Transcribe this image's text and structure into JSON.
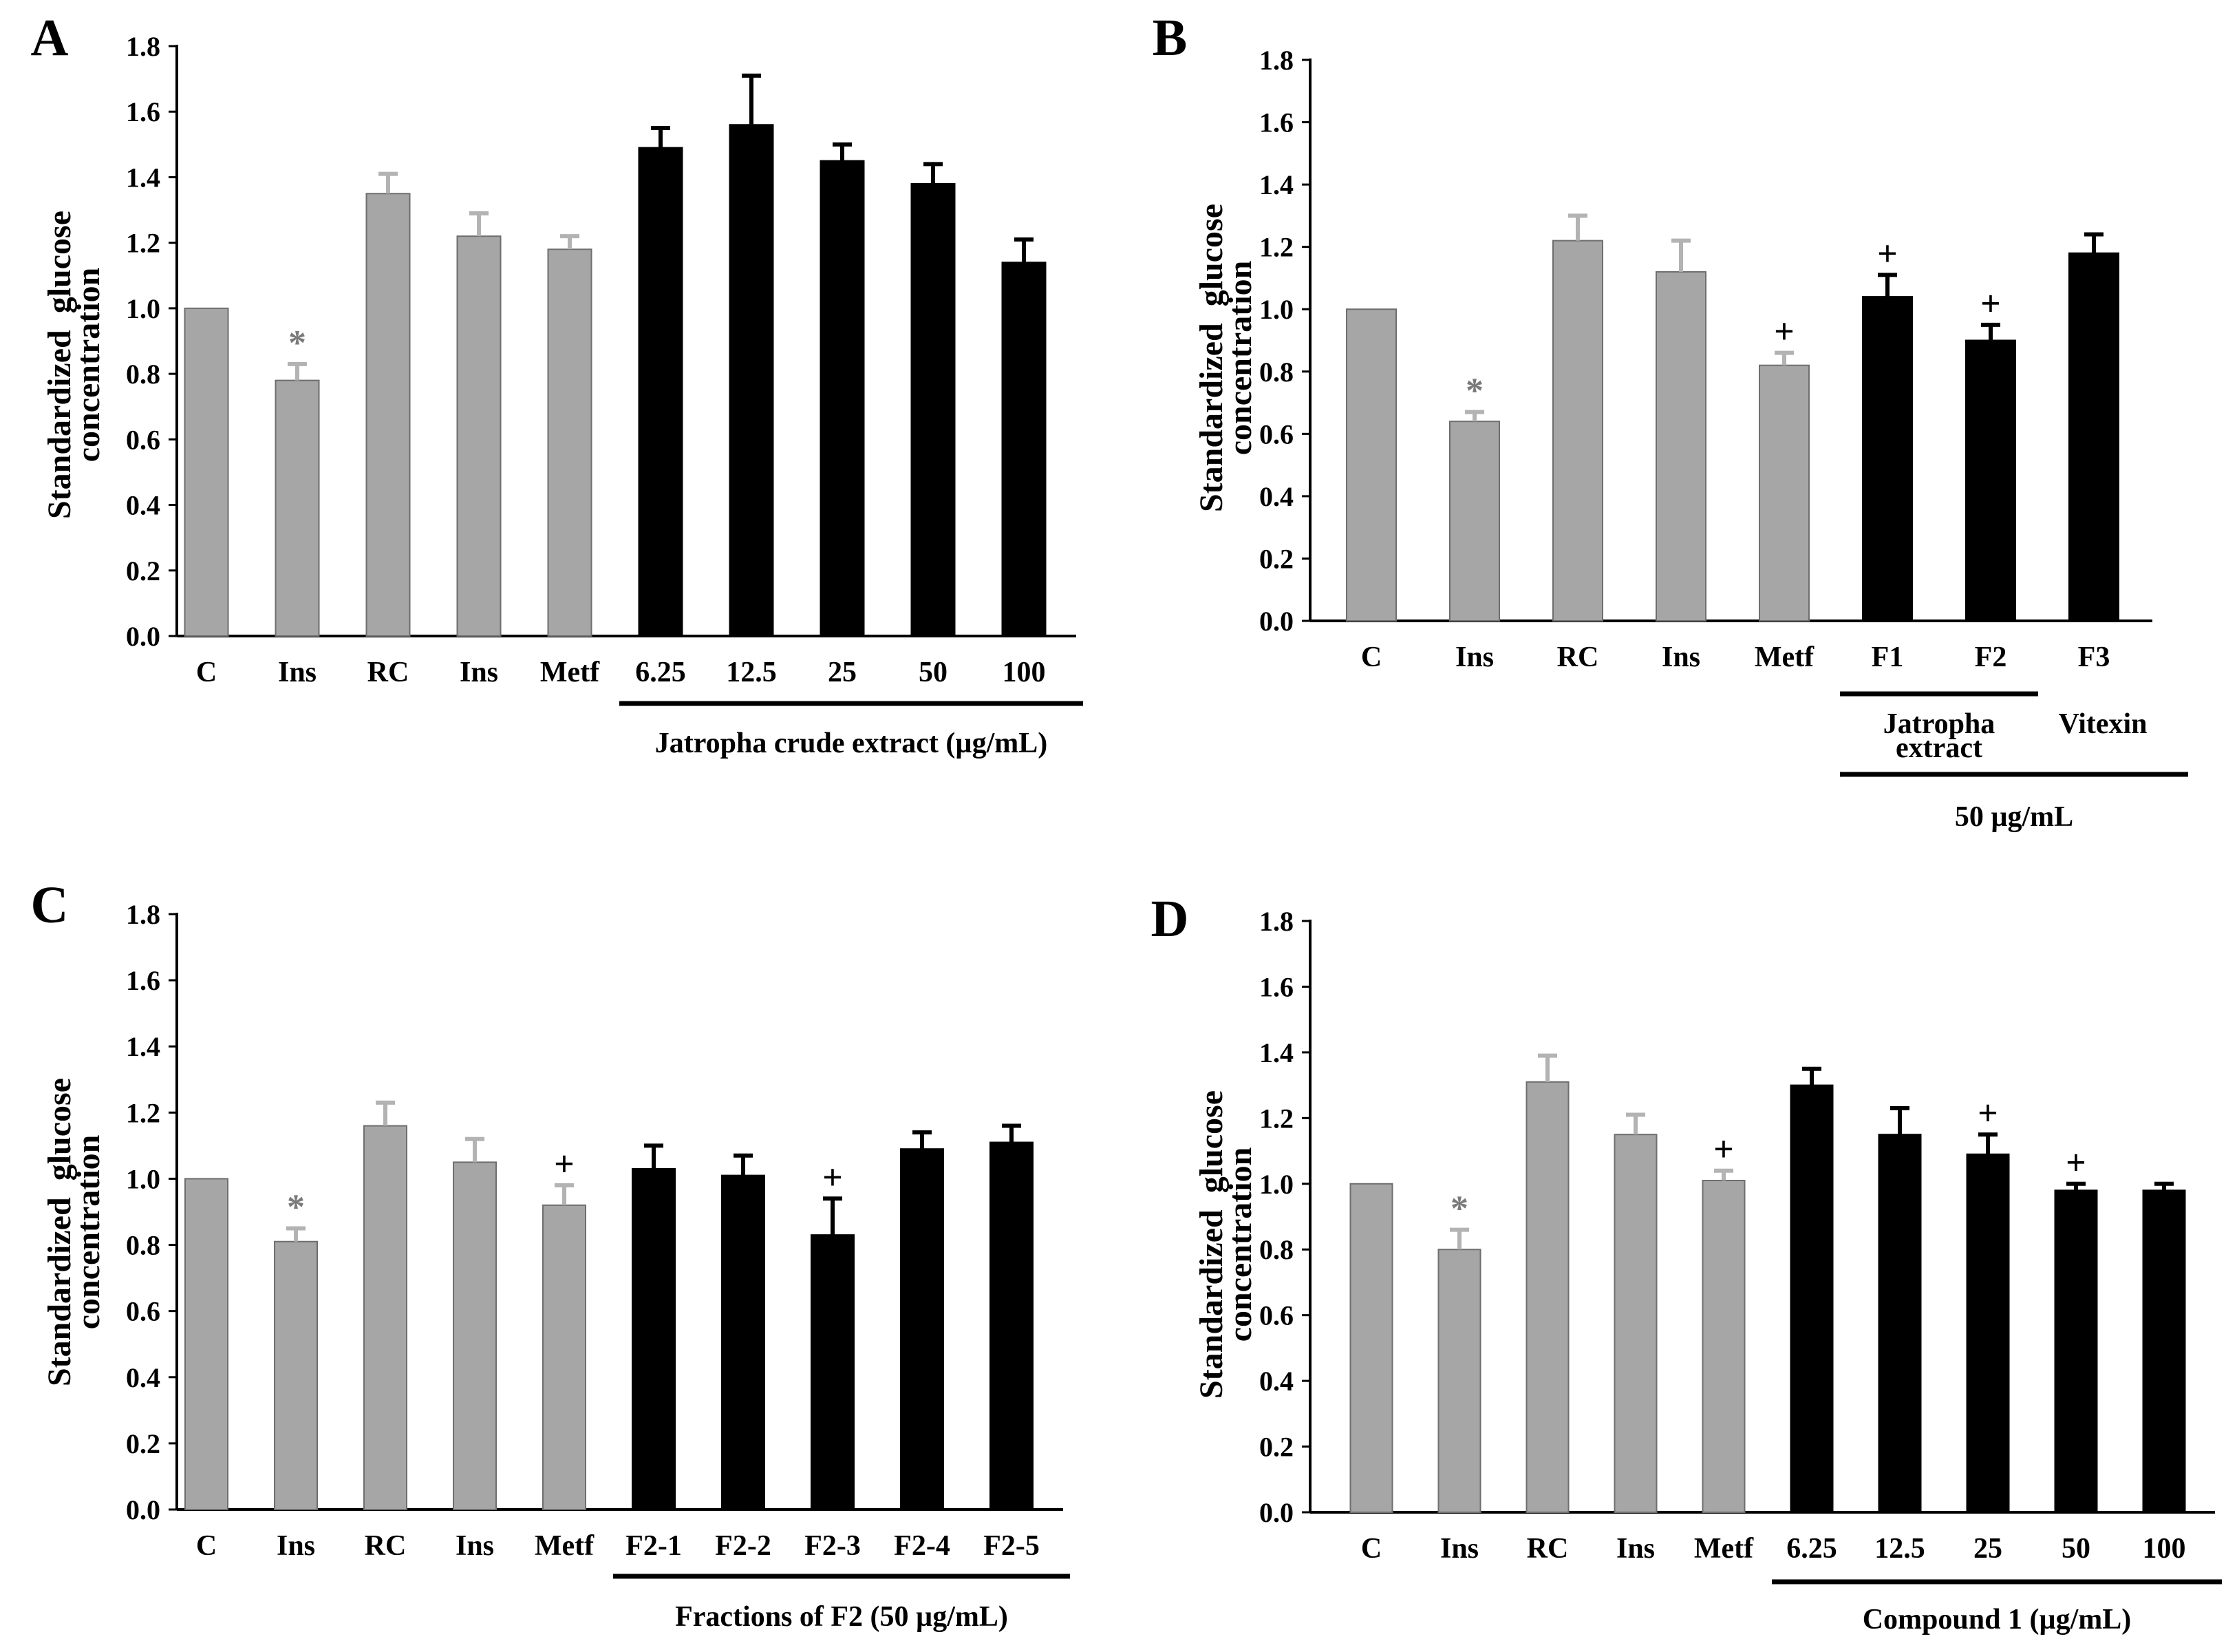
{
  "colors": {
    "control": "#a6a6a6",
    "treatment": "#000000",
    "control_error": "#b3b3b3",
    "axis": "#000000"
  },
  "chart_data": [
    {
      "panel": "A",
      "type": "bar",
      "ylabel_line1": "Standardized  glucose",
      "ylabel_line2": "concentration",
      "ylim": [
        0,
        1.8
      ],
      "yticks": [
        "0.0",
        "0.2",
        "0.4",
        "0.6",
        "0.8",
        "1.0",
        "1.2",
        "1.4",
        "1.6",
        "1.8"
      ],
      "categories": [
        "C",
        "Ins",
        "RC",
        "Ins",
        "Metf",
        "6.25",
        "12.5",
        "25",
        "50",
        "100"
      ],
      "values": [
        1.0,
        0.78,
        1.35,
        1.22,
        1.18,
        1.49,
        1.56,
        1.45,
        1.38,
        1.14
      ],
      "errors": [
        0,
        0.05,
        0.06,
        0.07,
        0.04,
        0.06,
        0.15,
        0.05,
        0.06,
        0.07
      ],
      "groups": [
        "control",
        "control",
        "control",
        "control",
        "control",
        "treatment",
        "treatment",
        "treatment",
        "treatment",
        "treatment"
      ],
      "markers": [
        "",
        "*",
        "",
        "",
        "",
        "",
        "",
        "",
        "",
        ""
      ],
      "group_labels": [
        {
          "text": "Jatropha crude extract (µg/mL)",
          "start": 5,
          "end": 9
        }
      ]
    },
    {
      "panel": "B",
      "type": "bar",
      "ylabel_line1": "Standardized  glucose",
      "ylabel_line2": "concentration",
      "ylim": [
        0,
        1.8
      ],
      "yticks": [
        "0.0",
        "0.2",
        "0.4",
        "0.6",
        "0.8",
        "1.0",
        "1.2",
        "1.4",
        "1.6",
        "1.8"
      ],
      "categories": [
        "C",
        "Ins",
        "RC",
        "Ins",
        "Metf",
        "F1",
        "F2",
        "F3"
      ],
      "values": [
        1.0,
        0.64,
        1.22,
        1.12,
        0.82,
        1.04,
        0.9,
        1.18
      ],
      "errors": [
        0,
        0.03,
        0.08,
        0.1,
        0.04,
        0.07,
        0.05,
        0.06
      ],
      "groups": [
        "control",
        "control",
        "control",
        "control",
        "control",
        "treatment",
        "treatment",
        "treatment"
      ],
      "markers": [
        "",
        "*",
        "",
        "",
        "+",
        "+",
        "+",
        ""
      ],
      "group_labels": [
        {
          "text": "Jatropha",
          "text2": "extract",
          "start": 5,
          "end": 6
        },
        {
          "text": "Vitexin",
          "start": 7,
          "end": 7
        }
      ],
      "outer_label": "50 µg/mL"
    },
    {
      "panel": "C",
      "type": "bar",
      "ylabel_line1": "Standardized  glucose",
      "ylabel_line2": "concentration",
      "ylim": [
        0,
        1.8
      ],
      "yticks": [
        "0.0",
        "0.2",
        "0.4",
        "0.6",
        "0.8",
        "1.0",
        "1.2",
        "1.4",
        "1.6",
        "1.8"
      ],
      "categories": [
        "C",
        "Ins",
        "RC",
        "Ins",
        "Metf",
        "F2-1",
        "F2-2",
        "F2-3",
        "F2-4",
        "F2-5"
      ],
      "values": [
        1.0,
        0.81,
        1.16,
        1.05,
        0.92,
        1.03,
        1.01,
        0.83,
        1.09,
        1.11
      ],
      "errors": [
        0,
        0.04,
        0.07,
        0.07,
        0.06,
        0.07,
        0.06,
        0.11,
        0.05,
        0.05
      ],
      "groups": [
        "control",
        "control",
        "control",
        "control",
        "control",
        "treatment",
        "treatment",
        "treatment",
        "treatment",
        "treatment"
      ],
      "markers": [
        "",
        "*",
        "",
        "",
        "+",
        "",
        "",
        "+",
        "",
        ""
      ],
      "group_labels": [
        {
          "text": "Fractions of F2 (50 µg/mL)",
          "start": 5,
          "end": 9
        }
      ]
    },
    {
      "panel": "D",
      "type": "bar",
      "ylabel_line1": "Standardized  glucose",
      "ylabel_line2": "concentration",
      "ylim": [
        0,
        1.8
      ],
      "yticks": [
        "0.0",
        "0.2",
        "0.4",
        "0.6",
        "0.8",
        "1.0",
        "1.2",
        "1.4",
        "1.6",
        "1.8"
      ],
      "categories": [
        "C",
        "Ins",
        "RC",
        "Ins",
        "Metf",
        "6.25",
        "12.5",
        "25",
        "50",
        "100"
      ],
      "values": [
        1.0,
        0.8,
        1.31,
        1.15,
        1.01,
        1.3,
        1.15,
        1.09,
        0.98,
        0.98
      ],
      "errors": [
        0,
        0.06,
        0.08,
        0.06,
        0.03,
        0.05,
        0.08,
        0.06,
        0.02,
        0.02
      ],
      "groups": [
        "control",
        "control",
        "control",
        "control",
        "control",
        "treatment",
        "treatment",
        "treatment",
        "treatment",
        "treatment"
      ],
      "markers": [
        "",
        "*",
        "",
        "",
        "+",
        "",
        "",
        "+",
        "+",
        ""
      ],
      "group_labels": [
        {
          "text": "Compound 1 (µg/mL)",
          "start": 5,
          "end": 9
        }
      ]
    }
  ]
}
